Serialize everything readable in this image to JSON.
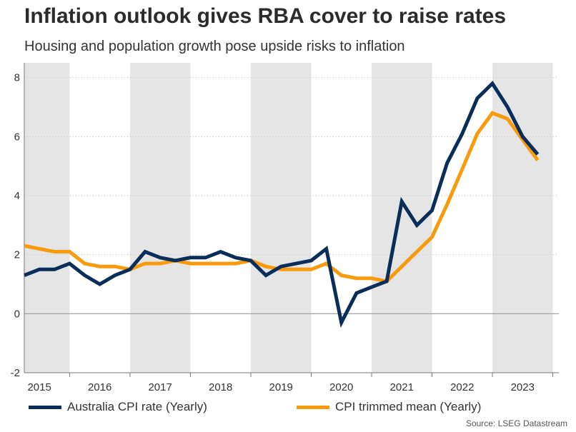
{
  "title": "Inflation outlook gives RBA cover to raise rates",
  "subtitle": "Housing and population growth pose upside risks to inflation",
  "source": "Source: LSEG Datastream",
  "colors": {
    "cpi": "#0a2d5a",
    "trimmed": "#f79a0e",
    "band": "#e5e5e5",
    "zero_line": "#9a9a9a",
    "grid": "#bdbdbd"
  },
  "chart_data": {
    "type": "line",
    "title": "Inflation outlook gives RBA cover to raise rates",
    "subtitle": "Housing and population growth pose upside risks to inflation",
    "xlabel": "",
    "ylabel": "",
    "xlim": [
      2015.0,
      2023.85
    ],
    "ylim": [
      -2,
      8.5
    ],
    "y_ticks": [
      -2,
      0,
      2,
      4,
      6,
      8
    ],
    "x_ticks": [
      "2015",
      "2016",
      "2017",
      "2018",
      "2019",
      "2020",
      "2021",
      "2022",
      "2023"
    ],
    "grid": true,
    "legend_position": "bottom",
    "shaded_years": [
      "2015",
      "2017",
      "2019",
      "2021",
      "2023"
    ],
    "x": [
      2015.0,
      2015.25,
      2015.5,
      2015.75,
      2016.0,
      2016.25,
      2016.5,
      2016.75,
      2017.0,
      2017.25,
      2017.5,
      2017.75,
      2018.0,
      2018.25,
      2018.5,
      2018.75,
      2019.0,
      2019.25,
      2019.5,
      2019.75,
      2020.0,
      2020.25,
      2020.5,
      2020.75,
      2021.0,
      2021.25,
      2021.5,
      2021.75,
      2022.0,
      2022.25,
      2022.5,
      2022.75,
      2023.0,
      2023.25,
      2023.5
    ],
    "series": [
      {
        "name": "Australia CPI rate (Yearly)",
        "values": [
          1.3,
          1.5,
          1.5,
          1.7,
          1.3,
          1.0,
          1.3,
          1.5,
          2.1,
          1.9,
          1.8,
          1.9,
          1.9,
          2.1,
          1.9,
          1.8,
          1.3,
          1.6,
          1.7,
          1.8,
          2.2,
          -0.3,
          0.7,
          0.9,
          1.1,
          3.8,
          3.0,
          3.5,
          5.1,
          6.1,
          7.3,
          7.8,
          7.0,
          6.0,
          5.4
        ]
      },
      {
        "name": "CPI trimmed mean (Yearly)",
        "values": [
          2.3,
          2.2,
          2.1,
          2.1,
          1.7,
          1.6,
          1.6,
          1.5,
          1.7,
          1.7,
          1.8,
          1.7,
          1.7,
          1.7,
          1.7,
          1.8,
          1.6,
          1.5,
          1.5,
          1.5,
          1.7,
          1.3,
          1.2,
          1.2,
          1.1,
          1.6,
          2.1,
          2.6,
          3.7,
          4.9,
          6.1,
          6.8,
          6.6,
          5.9,
          5.2
        ]
      }
    ]
  }
}
